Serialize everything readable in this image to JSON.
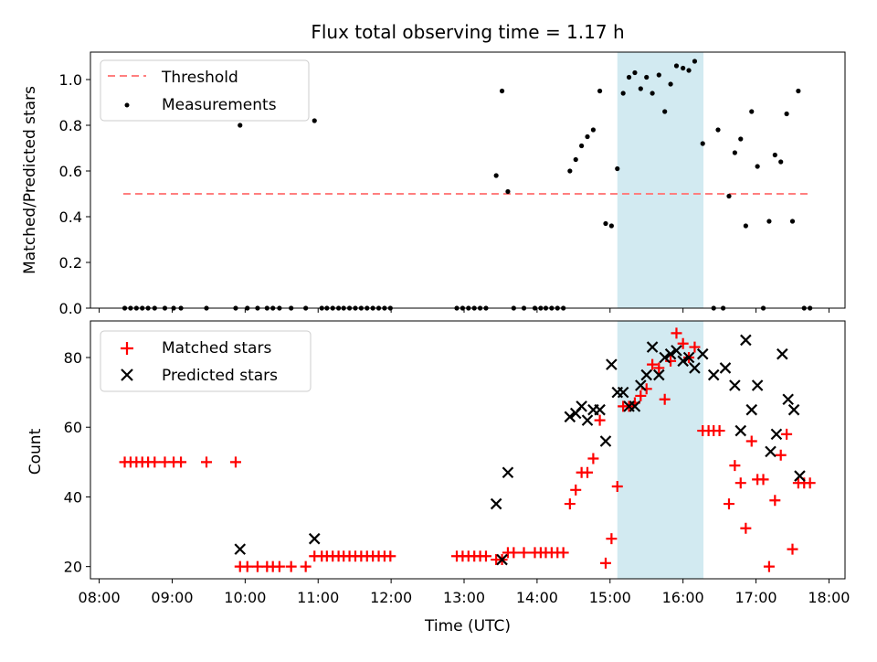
{
  "title": "Flux total observing time = 1.17 h",
  "colors": {
    "threshold": "#ff7f7f",
    "measurement": "#000000",
    "matched": "#ff0000",
    "predicted": "#000000",
    "highlight": "#add8e6"
  },
  "chart_data": [
    {
      "type": "scatter",
      "ylabel": "Matched/Predicted stars",
      "ylim": [
        0,
        1.12
      ],
      "yticks": [
        "0.0",
        "0.2",
        "0.4",
        "0.6",
        "0.8",
        "1.0"
      ],
      "ytick_values": [
        0,
        0.2,
        0.4,
        0.6,
        0.8,
        1.0
      ],
      "xlim_hours": [
        7.88,
        18.22
      ],
      "highlight_span_hours": [
        15.1,
        16.28
      ],
      "legend": {
        "position": "top-left",
        "entries": [
          "Threshold",
          "Measurements"
        ]
      },
      "threshold": {
        "label": "Threshold",
        "y": 0.5,
        "x_start": 8.33,
        "x_end": 17.75
      },
      "series": [
        {
          "name": "Measurements",
          "marker": "dot",
          "points": [
            [
              8.35,
              0
            ],
            [
              8.43,
              0
            ],
            [
              8.51,
              0
            ],
            [
              8.59,
              0
            ],
            [
              8.67,
              0
            ],
            [
              8.76,
              0
            ],
            [
              8.9,
              0
            ],
            [
              9.02,
              0
            ],
            [
              9.12,
              0
            ],
            [
              9.47,
              0
            ],
            [
              9.87,
              0
            ],
            [
              9.93,
              0.8
            ],
            [
              10.03,
              0
            ],
            [
              10.17,
              0
            ],
            [
              10.3,
              0
            ],
            [
              10.38,
              0
            ],
            [
              10.47,
              0
            ],
            [
              10.63,
              0
            ],
            [
              10.83,
              0
            ],
            [
              10.95,
              0.82
            ],
            [
              11.05,
              0
            ],
            [
              11.12,
              0
            ],
            [
              11.2,
              0
            ],
            [
              11.28,
              0
            ],
            [
              11.35,
              0
            ],
            [
              11.43,
              0
            ],
            [
              11.51,
              0
            ],
            [
              11.59,
              0
            ],
            [
              11.67,
              0
            ],
            [
              11.75,
              0
            ],
            [
              11.83,
              0
            ],
            [
              11.91,
              0
            ],
            [
              11.99,
              0
            ],
            [
              12.9,
              0
            ],
            [
              12.98,
              0
            ],
            [
              13.06,
              0
            ],
            [
              13.14,
              0
            ],
            [
              13.22,
              0
            ],
            [
              13.3,
              0
            ],
            [
              13.44,
              0.58
            ],
            [
              13.52,
              0.95
            ],
            [
              13.6,
              0.51
            ],
            [
              13.68,
              0
            ],
            [
              13.82,
              0
            ],
            [
              13.97,
              0
            ],
            [
              14.05,
              0
            ],
            [
              14.12,
              0
            ],
            [
              14.2,
              0
            ],
            [
              14.28,
              0
            ],
            [
              14.36,
              0
            ],
            [
              14.45,
              0.6
            ],
            [
              14.53,
              0.65
            ],
            [
              14.61,
              0.71
            ],
            [
              14.69,
              0.75
            ],
            [
              14.77,
              0.78
            ],
            [
              14.86,
              0.95
            ],
            [
              14.94,
              0.37
            ],
            [
              15.02,
              0.36
            ],
            [
              15.1,
              0.61
            ],
            [
              15.18,
              0.94
            ],
            [
              15.26,
              1.01
            ],
            [
              15.34,
              1.03
            ],
            [
              15.42,
              0.96
            ],
            [
              15.5,
              1.01
            ],
            [
              15.58,
              0.94
            ],
            [
              15.67,
              1.02
            ],
            [
              15.75,
              0.86
            ],
            [
              15.83,
              0.98
            ],
            [
              15.91,
              1.06
            ],
            [
              16.0,
              1.05
            ],
            [
              16.08,
              1.04
            ],
            [
              16.16,
              1.08
            ],
            [
              16.27,
              0.72
            ],
            [
              16.42,
              0
            ],
            [
              16.48,
              0.78
            ],
            [
              16.55,
              0
            ],
            [
              16.63,
              0.49
            ],
            [
              16.71,
              0.68
            ],
            [
              16.79,
              0.74
            ],
            [
              16.86,
              0.36
            ],
            [
              16.94,
              0.86
            ],
            [
              17.02,
              0.62
            ],
            [
              17.1,
              0
            ],
            [
              17.18,
              0.38
            ],
            [
              17.26,
              0.67
            ],
            [
              17.34,
              0.64
            ],
            [
              17.42,
              0.85
            ],
            [
              17.5,
              0.38
            ],
            [
              17.58,
              0.95
            ],
            [
              17.66,
              0
            ],
            [
              17.74,
              0
            ]
          ]
        }
      ]
    },
    {
      "type": "scatter",
      "xlabel": "Time (UTC)",
      "ylabel": "Count",
      "ylim": [
        16.5,
        90.5
      ],
      "yticks": [
        "20",
        "40",
        "60",
        "80"
      ],
      "ytick_values": [
        20,
        40,
        60,
        80
      ],
      "xlim_hours": [
        7.88,
        18.22
      ],
      "xticks": [
        "08:00",
        "09:00",
        "10:00",
        "11:00",
        "12:00",
        "13:00",
        "14:00",
        "15:00",
        "16:00",
        "17:00",
        "18:00"
      ],
      "xtick_values": [
        8,
        9,
        10,
        11,
        12,
        13,
        14,
        15,
        16,
        17,
        18
      ],
      "highlight_span_hours": [
        15.1,
        16.28
      ],
      "legend": {
        "position": "top-left",
        "entries": [
          "Matched stars",
          "Predicted stars"
        ]
      },
      "series": [
        {
          "name": "Matched stars",
          "marker": "plus",
          "points": [
            [
              8.35,
              50
            ],
            [
              8.43,
              50
            ],
            [
              8.51,
              50
            ],
            [
              8.59,
              50
            ],
            [
              8.67,
              50
            ],
            [
              8.76,
              50
            ],
            [
              8.9,
              50
            ],
            [
              9.02,
              50
            ],
            [
              9.12,
              50
            ],
            [
              9.47,
              50
            ],
            [
              9.87,
              50
            ],
            [
              9.93,
              20
            ],
            [
              10.03,
              20
            ],
            [
              10.17,
              20
            ],
            [
              10.3,
              20
            ],
            [
              10.38,
              20
            ],
            [
              10.47,
              20
            ],
            [
              10.63,
              20
            ],
            [
              10.83,
              20
            ],
            [
              10.95,
              23
            ],
            [
              11.05,
              23
            ],
            [
              11.12,
              23
            ],
            [
              11.2,
              23
            ],
            [
              11.28,
              23
            ],
            [
              11.35,
              23
            ],
            [
              11.43,
              23
            ],
            [
              11.51,
              23
            ],
            [
              11.59,
              23
            ],
            [
              11.67,
              23
            ],
            [
              11.75,
              23
            ],
            [
              11.83,
              23
            ],
            [
              11.91,
              23
            ],
            [
              11.99,
              23
            ],
            [
              12.9,
              23
            ],
            [
              12.98,
              23
            ],
            [
              13.06,
              23
            ],
            [
              13.14,
              23
            ],
            [
              13.22,
              23
            ],
            [
              13.3,
              23
            ],
            [
              13.44,
              22
            ],
            [
              13.52,
              22
            ],
            [
              13.6,
              24
            ],
            [
              13.68,
              24
            ],
            [
              13.82,
              24
            ],
            [
              13.97,
              24
            ],
            [
              14.05,
              24
            ],
            [
              14.12,
              24
            ],
            [
              14.2,
              24
            ],
            [
              14.28,
              24
            ],
            [
              14.36,
              24
            ],
            [
              14.45,
              38
            ],
            [
              14.53,
              42
            ],
            [
              14.61,
              47
            ],
            [
              14.69,
              47
            ],
            [
              14.77,
              51
            ],
            [
              14.86,
              62
            ],
            [
              14.94,
              21
            ],
            [
              15.02,
              28
            ],
            [
              15.1,
              43
            ],
            [
              15.18,
              66
            ],
            [
              15.26,
              66
            ],
            [
              15.34,
              67
            ],
            [
              15.42,
              69
            ],
            [
              15.5,
              71
            ],
            [
              15.58,
              78
            ],
            [
              15.67,
              77
            ],
            [
              15.75,
              68
            ],
            [
              15.83,
              79
            ],
            [
              15.91,
              87
            ],
            [
              16.0,
              84
            ],
            [
              16.08,
              80
            ],
            [
              16.16,
              83
            ],
            [
              16.27,
              59
            ],
            [
              16.35,
              59
            ],
            [
              16.42,
              59
            ],
            [
              16.5,
              59
            ],
            [
              16.63,
              38
            ],
            [
              16.71,
              49
            ],
            [
              16.79,
              44
            ],
            [
              16.86,
              31
            ],
            [
              16.94,
              56
            ],
            [
              17.02,
              45
            ],
            [
              17.1,
              45
            ],
            [
              17.18,
              20
            ],
            [
              17.26,
              39
            ],
            [
              17.34,
              52
            ],
            [
              17.42,
              58
            ],
            [
              17.5,
              25
            ],
            [
              17.58,
              44
            ],
            [
              17.66,
              44
            ],
            [
              17.74,
              44
            ]
          ]
        },
        {
          "name": "Predicted stars",
          "marker": "x",
          "points": [
            [
              9.93,
              25
            ],
            [
              10.95,
              28
            ],
            [
              13.44,
              38
            ],
            [
              13.52,
              22
            ],
            [
              13.6,
              47
            ],
            [
              14.45,
              63
            ],
            [
              14.53,
              64
            ],
            [
              14.61,
              66
            ],
            [
              14.69,
              62
            ],
            [
              14.77,
              65
            ],
            [
              14.86,
              65
            ],
            [
              14.94,
              56
            ],
            [
              15.02,
              78
            ],
            [
              15.1,
              70
            ],
            [
              15.18,
              70
            ],
            [
              15.26,
              66
            ],
            [
              15.34,
              66
            ],
            [
              15.42,
              72
            ],
            [
              15.5,
              75
            ],
            [
              15.58,
              83
            ],
            [
              15.67,
              75
            ],
            [
              15.75,
              80
            ],
            [
              15.83,
              81
            ],
            [
              15.91,
              82
            ],
            [
              16.0,
              79
            ],
            [
              16.08,
              80
            ],
            [
              16.16,
              77
            ],
            [
              16.27,
              81
            ],
            [
              16.42,
              75
            ],
            [
              16.58,
              77
            ],
            [
              16.71,
              72
            ],
            [
              16.79,
              59
            ],
            [
              16.86,
              85
            ],
            [
              16.94,
              65
            ],
            [
              17.02,
              72
            ],
            [
              17.2,
              53
            ],
            [
              17.28,
              58
            ],
            [
              17.36,
              81
            ],
            [
              17.44,
              68
            ],
            [
              17.52,
              65
            ],
            [
              17.6,
              46
            ]
          ]
        }
      ]
    }
  ]
}
